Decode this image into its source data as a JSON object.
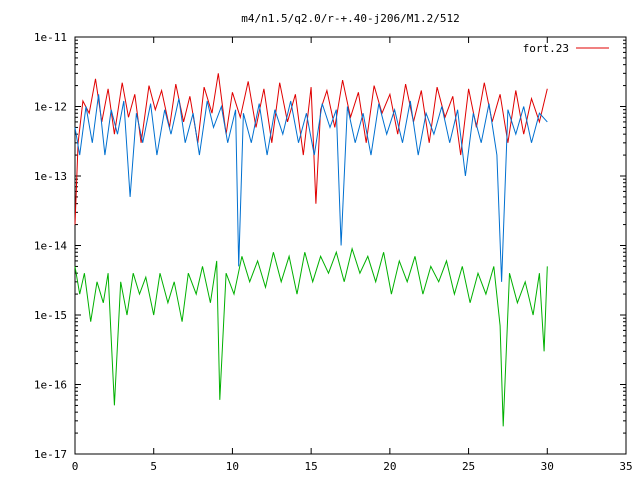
{
  "chart_data": {
    "type": "line",
    "title": "m4/n1.5/q2.0/r-+.40-j206/M1.2/512",
    "xlabel": "",
    "ylabel": "",
    "xlim": [
      0,
      35
    ],
    "ylim": [
      1e-17,
      1e-11
    ],
    "yscale": "log",
    "xticks": [
      {
        "value": 0,
        "label": "0"
      },
      {
        "value": 5,
        "label": "5"
      },
      {
        "value": 10,
        "label": "10"
      },
      {
        "value": 15,
        "label": "15"
      },
      {
        "value": 20,
        "label": "20"
      },
      {
        "value": 25,
        "label": "25"
      },
      {
        "value": 30,
        "label": "30"
      },
      {
        "value": 35,
        "label": "35"
      }
    ],
    "yticks": [
      {
        "value": 1e-11,
        "label": "1e-11"
      },
      {
        "value": 1e-12,
        "label": "1e-12"
      },
      {
        "value": 1e-13,
        "label": "1e-13"
      },
      {
        "value": 1e-14,
        "label": "1e-14"
      },
      {
        "value": 1e-15,
        "label": "1e-15"
      },
      {
        "value": 1e-16,
        "label": "1e-16"
      },
      {
        "value": 1e-17,
        "label": "1e-17"
      }
    ],
    "grid": false,
    "legend_position": "top-right",
    "series": [
      {
        "name": "fort.23",
        "color": "#e00000",
        "x": [
          0.0,
          0.2,
          0.5,
          0.9,
          1.3,
          1.7,
          2.1,
          2.5,
          3.0,
          3.4,
          3.8,
          4.2,
          4.7,
          5.1,
          5.5,
          6.0,
          6.4,
          6.9,
          7.3,
          7.8,
          8.2,
          8.7,
          9.1,
          9.6,
          10.0,
          10.5,
          11.0,
          11.5,
          12.0,
          12.5,
          13.0,
          13.5,
          14.0,
          14.5,
          15.0,
          15.3,
          15.6,
          16.0,
          16.5,
          17.0,
          17.5,
          18.0,
          18.5,
          19.0,
          19.5,
          20.0,
          20.5,
          21.0,
          21.5,
          22.0,
          22.5,
          23.0,
          23.5,
          24.0,
          24.5,
          25.0,
          25.5,
          26.0,
          26.5,
          27.0,
          27.5,
          28.0,
          28.5,
          29.0,
          29.5,
          30.0
        ],
        "y": [
          2e-14,
          3e-13,
          1.2e-12,
          8e-13,
          2.5e-12,
          6e-13,
          1.8e-12,
          4e-13,
          2.2e-12,
          7e-13,
          1.5e-12,
          3e-13,
          2e-12,
          9e-13,
          1.7e-12,
          5e-13,
          2.1e-12,
          6e-13,
          1.4e-12,
          3e-13,
          1.9e-12,
          8e-13,
          3e-12,
          4e-13,
          1.6e-12,
          7e-13,
          2.3e-12,
          5e-13,
          1.8e-12,
          3e-13,
          2.2e-12,
          6e-13,
          1.5e-12,
          2e-13,
          1.9e-12,
          4e-14,
          9e-13,
          1.7e-12,
          5e-13,
          2.4e-12,
          7e-13,
          1.6e-12,
          3e-13,
          2e-12,
          8e-13,
          1.5e-12,
          4e-13,
          2.1e-12,
          6e-13,
          1.7e-12,
          3e-13,
          1.9e-12,
          7e-13,
          1.4e-12,
          2e-13,
          1.8e-12,
          5e-13,
          2.2e-12,
          6e-13,
          1.5e-12,
          3e-13,
          1.7e-12,
          4e-13,
          1.3e-12,
          6e-13,
          1.8e-12
        ]
      },
      {
        "name": "",
        "color": "#0070d0",
        "x": [
          0.0,
          0.3,
          0.7,
          1.1,
          1.5,
          1.9,
          2.3,
          2.7,
          3.1,
          3.5,
          3.9,
          4.3,
          4.8,
          5.2,
          5.7,
          6.1,
          6.6,
          7.0,
          7.5,
          7.9,
          8.4,
          8.8,
          9.3,
          9.7,
          10.2,
          10.4,
          10.7,
          11.2,
          11.7,
          12.2,
          12.7,
          13.2,
          13.7,
          14.2,
          14.7,
          15.2,
          15.7,
          16.2,
          16.6,
          16.9,
          17.3,
          17.8,
          18.3,
          18.8,
          19.3,
          19.8,
          20.3,
          20.8,
          21.3,
          21.8,
          22.3,
          22.8,
          23.3,
          23.8,
          24.3,
          24.8,
          25.3,
          25.8,
          26.3,
          26.8,
          27.1,
          27.5,
          28.0,
          28.5,
          29.0,
          29.5,
          30.0
        ],
        "y": [
          5e-13,
          2e-13,
          1e-12,
          3e-13,
          1.5e-12,
          2e-13,
          9e-13,
          4e-13,
          1.2e-12,
          5e-14,
          8e-13,
          3e-13,
          1.1e-12,
          2e-13,
          9e-13,
          4e-13,
          1.3e-12,
          3e-13,
          8e-13,
          2e-13,
          1.2e-12,
          5e-13,
          1e-12,
          3e-13,
          9e-13,
          5e-15,
          8e-13,
          3e-13,
          1.1e-12,
          2e-13,
          9e-13,
          4e-13,
          1.2e-12,
          3e-13,
          8e-13,
          2e-13,
          1.1e-12,
          5e-13,
          9e-13,
          1e-14,
          1e-12,
          3e-13,
          8e-13,
          2e-13,
          1.1e-12,
          4e-13,
          9e-13,
          3e-13,
          1.2e-12,
          2e-13,
          8e-13,
          4e-13,
          1e-12,
          3e-13,
          9e-13,
          1e-13,
          8e-13,
          3e-13,
          1.1e-12,
          2e-13,
          3e-15,
          9e-13,
          4e-13,
          1e-12,
          3e-13,
          8e-13,
          6e-13
        ]
      },
      {
        "name": "",
        "color": "#00b000",
        "x": [
          0.0,
          0.3,
          0.6,
          1.0,
          1.4,
          1.8,
          2.1,
          2.5,
          2.9,
          3.3,
          3.7,
          4.1,
          4.5,
          5.0,
          5.4,
          5.9,
          6.3,
          6.8,
          7.2,
          7.7,
          8.1,
          8.6,
          9.0,
          9.2,
          9.6,
          10.1,
          10.6,
          11.1,
          11.6,
          12.1,
          12.6,
          13.1,
          13.6,
          14.1,
          14.6,
          15.1,
          15.6,
          16.1,
          16.6,
          17.1,
          17.6,
          18.1,
          18.6,
          19.1,
          19.6,
          20.1,
          20.6,
          21.1,
          21.6,
          22.1,
          22.6,
          23.1,
          23.6,
          24.1,
          24.6,
          25.1,
          25.6,
          26.1,
          26.6,
          27.0,
          27.2,
          27.6,
          28.1,
          28.6,
          29.1,
          29.5,
          29.8,
          30.0
        ],
        "y": [
          5e-15,
          2e-15,
          4e-15,
          8e-16,
          3e-15,
          1.5e-15,
          4e-15,
          5e-17,
          3e-15,
          1e-15,
          4e-15,
          2e-15,
          3.5e-15,
          1e-15,
          4e-15,
          1.5e-15,
          3e-15,
          8e-16,
          4e-15,
          2e-15,
          5e-15,
          1.5e-15,
          6e-15,
          6e-17,
          4e-15,
          2e-15,
          7e-15,
          3e-15,
          6e-15,
          2.5e-15,
          8e-15,
          3e-15,
          7e-15,
          2e-15,
          8e-15,
          3e-15,
          7e-15,
          4e-15,
          8e-15,
          3e-15,
          9e-15,
          4e-15,
          7e-15,
          3e-15,
          8e-15,
          2e-15,
          6e-15,
          3e-15,
          7e-15,
          2e-15,
          5e-15,
          3e-15,
          6e-15,
          2e-15,
          5e-15,
          1.5e-15,
          4e-15,
          2e-15,
          5e-15,
          7e-16,
          2.5e-17,
          4e-15,
          1.5e-15,
          3e-15,
          1e-15,
          4e-15,
          3e-16,
          5e-15
        ]
      }
    ]
  }
}
